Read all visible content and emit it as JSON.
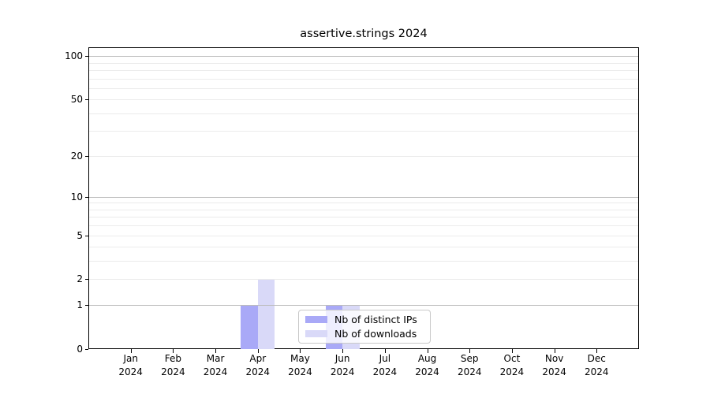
{
  "chart_data": {
    "type": "bar",
    "title": "assertive.strings 2024",
    "categories": [
      "Jan 2024",
      "Feb 2024",
      "Mar 2024",
      "Apr 2024",
      "May 2024",
      "Jun 2024",
      "Jul 2024",
      "Aug 2024",
      "Sep 2024",
      "Oct 2024",
      "Nov 2024",
      "Dec 2024"
    ],
    "x_tick_month": [
      "Jan",
      "Feb",
      "Mar",
      "Apr",
      "May",
      "Jun",
      "Jul",
      "Aug",
      "Sep",
      "Oct",
      "Nov",
      "Dec"
    ],
    "x_tick_year": "2024",
    "series": [
      {
        "name": "Nb of distinct IPs",
        "color": "#a9a9f7",
        "values": [
          0,
          0,
          0,
          1,
          0,
          1,
          0,
          0,
          0,
          0,
          0,
          0
        ]
      },
      {
        "name": "Nb of downloads",
        "color": "#d9d9f8",
        "values": [
          0,
          0,
          0,
          2,
          0,
          1,
          0,
          0,
          0,
          0,
          0,
          0
        ]
      }
    ],
    "xlabel": "",
    "ylabel": "",
    "y_axis": {
      "scale": "log1p",
      "ticks": [
        0,
        1,
        2,
        5,
        10,
        20,
        50,
        100
      ],
      "max": 115,
      "major_gridlines": [
        1,
        10,
        100
      ],
      "minor_gridlines": [
        2,
        3,
        4,
        5,
        6,
        7,
        8,
        9,
        20,
        30,
        40,
        50,
        60,
        70,
        80,
        90
      ]
    },
    "ylim": [
      0,
      115
    ],
    "grid": true,
    "legend": {
      "position": "lower-center",
      "entries": [
        "Nb of distinct IPs",
        "Nb of downloads"
      ]
    },
    "colors": {
      "distinct_ips_bar": "#a9a9f7",
      "downloads_bar": "#d9d9f8",
      "major_grid": "#bdbdbd",
      "minor_grid": "#ebebeb",
      "spine": "#000000",
      "text": "#000000",
      "legend_border": "#c9c9c9"
    }
  }
}
